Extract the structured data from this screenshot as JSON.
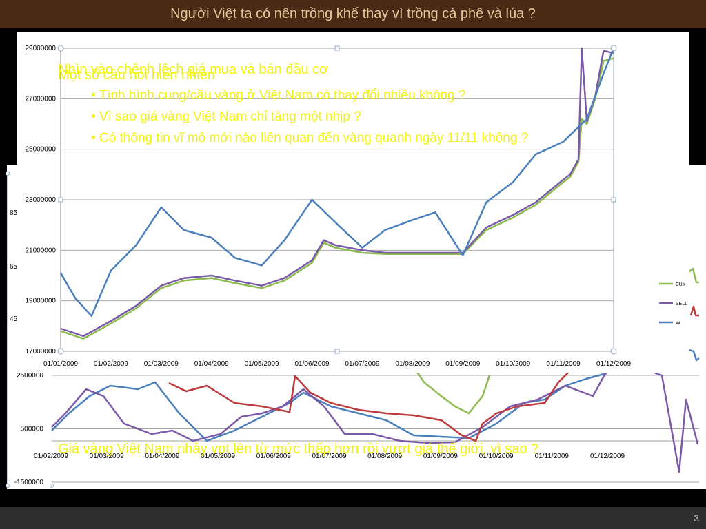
{
  "slide": {
    "title": "Người Việt ta có nên trồng khế thay vì trồng cà phê và lúa ?",
    "number": "3",
    "overlay_heading_1": "Nhìn vào chênh lệch giá mua và bán đầu cơ",
    "overlay_heading_2": "Một số câu hỏi hiển nhiên",
    "bullets": [
      "• Tình hình cung/cầu vàng ở Việt Nam có thay đổi nhiều không ?",
      "• Vì sao giá vàng Việt Nam chỉ tăng một nhịp ?",
      "• Có thông tin vĩ mô mới nào liên quan đến vàng quanh ngày 11/11 không ?"
    ],
    "bottom_caption": "Giá vàng Việt Nam nhảy vọt lên từ mức thấp hơn rồi vượt giá thế giới, vì sao ?",
    "bg_left_fragments": [
      "85",
      "65",
      "45"
    ]
  },
  "colors": {
    "title_bg": "#4a2a15",
    "buy": "#8cbb4e",
    "sell": "#7a5aa8",
    "world": "#4a7fbd",
    "red": "#c0393b",
    "overlay_text": "#f2f20f"
  },
  "chart_data": [
    {
      "type": "line",
      "title": "",
      "x_ticks": [
        "01/01/2009",
        "01/02/2009",
        "01/03/2009",
        "01/04/2009",
        "01/05/2009",
        "01/06/2009",
        "01/07/2009",
        "01/08/2009",
        "01/09/2009",
        "01/10/2009",
        "01/11/2009",
        "01/12/2009"
      ],
      "y_ticks": [
        "17000000",
        "19000000",
        "21000000",
        "23000000",
        "25000000",
        "27000000",
        "29000000"
      ],
      "ylim": [
        17000000,
        29000000
      ],
      "legend": [
        "BUY",
        "SELL",
        "W"
      ],
      "legend_position": "right",
      "grid": true,
      "series": [
        {
          "name": "BUY",
          "color": "#8cbb4e",
          "x": [
            "01/01",
            "15/01",
            "01/02",
            "15/02",
            "01/03",
            "15/03",
            "01/04",
            "15/04",
            "01/05",
            "15/05",
            "01/06",
            "08/06",
            "15/06",
            "01/07",
            "15/07",
            "01/08",
            "15/08",
            "01/09",
            "15/09",
            "01/10",
            "15/10",
            "01/11",
            "05/11",
            "10/11",
            "12/11",
            "15/11",
            "20/11",
            "25/11",
            "01/12"
          ],
          "values": [
            17800000,
            17500000,
            18100000,
            18700000,
            19500000,
            19800000,
            19900000,
            19700000,
            19500000,
            19800000,
            20500000,
            21300000,
            21100000,
            20900000,
            20850000,
            20850000,
            20850000,
            20850000,
            21800000,
            22300000,
            22800000,
            23700000,
            23900000,
            24500000,
            26200000,
            26000000,
            27000000,
            28500000,
            28600000
          ]
        },
        {
          "name": "SELL",
          "color": "#7a5aa8",
          "x": [
            "01/01",
            "15/01",
            "01/02",
            "15/02",
            "01/03",
            "15/03",
            "01/04",
            "15/04",
            "01/05",
            "15/05",
            "01/06",
            "08/06",
            "15/06",
            "01/07",
            "15/07",
            "01/08",
            "15/08",
            "01/09",
            "15/09",
            "01/10",
            "15/10",
            "01/11",
            "05/11",
            "10/11",
            "12/11",
            "15/11",
            "20/11",
            "25/11",
            "01/12"
          ],
          "values": [
            17900000,
            17600000,
            18200000,
            18800000,
            19600000,
            19900000,
            20000000,
            19800000,
            19600000,
            19900000,
            20600000,
            21400000,
            21200000,
            21000000,
            20900000,
            20900000,
            20900000,
            20900000,
            21900000,
            22400000,
            22900000,
            23800000,
            24000000,
            24600000,
            29000000,
            26100000,
            27100000,
            28900000,
            28800000
          ]
        },
        {
          "name": "W",
          "color": "#4a7fbd",
          "x": [
            "01/01",
            "10/01",
            "20/01",
            "01/02",
            "15/02",
            "01/03",
            "15/03",
            "01/04",
            "15/04",
            "01/05",
            "15/05",
            "01/06",
            "15/06",
            "01/07",
            "15/07",
            "01/08",
            "15/08",
            "01/09",
            "15/09",
            "01/10",
            "15/10",
            "01/11",
            "15/11",
            "25/11",
            "01/12"
          ],
          "values": [
            20100000,
            19100000,
            18400000,
            20200000,
            21200000,
            22700000,
            21800000,
            21500000,
            20700000,
            20400000,
            21400000,
            23000000,
            22100000,
            21100000,
            21800000,
            22200000,
            22500000,
            20800000,
            22900000,
            23700000,
            24800000,
            25300000,
            26200000,
            28000000,
            29000000
          ]
        }
      ]
    },
    {
      "type": "line",
      "title": "",
      "x_ticks": [
        "01/02/2009",
        "01/03/2009",
        "01/04/2009",
        "01/05/2009",
        "01/06/2009",
        "01/07/2009",
        "01/08/2009",
        "01/09/2009",
        "01/10/2009",
        "01/11/2009",
        "01/12/2009"
      ],
      "y_ticks": [
        "-1500000",
        "500000",
        "2500000"
      ],
      "ylim": [
        -1500000,
        2500000
      ],
      "grid": true
    }
  ]
}
